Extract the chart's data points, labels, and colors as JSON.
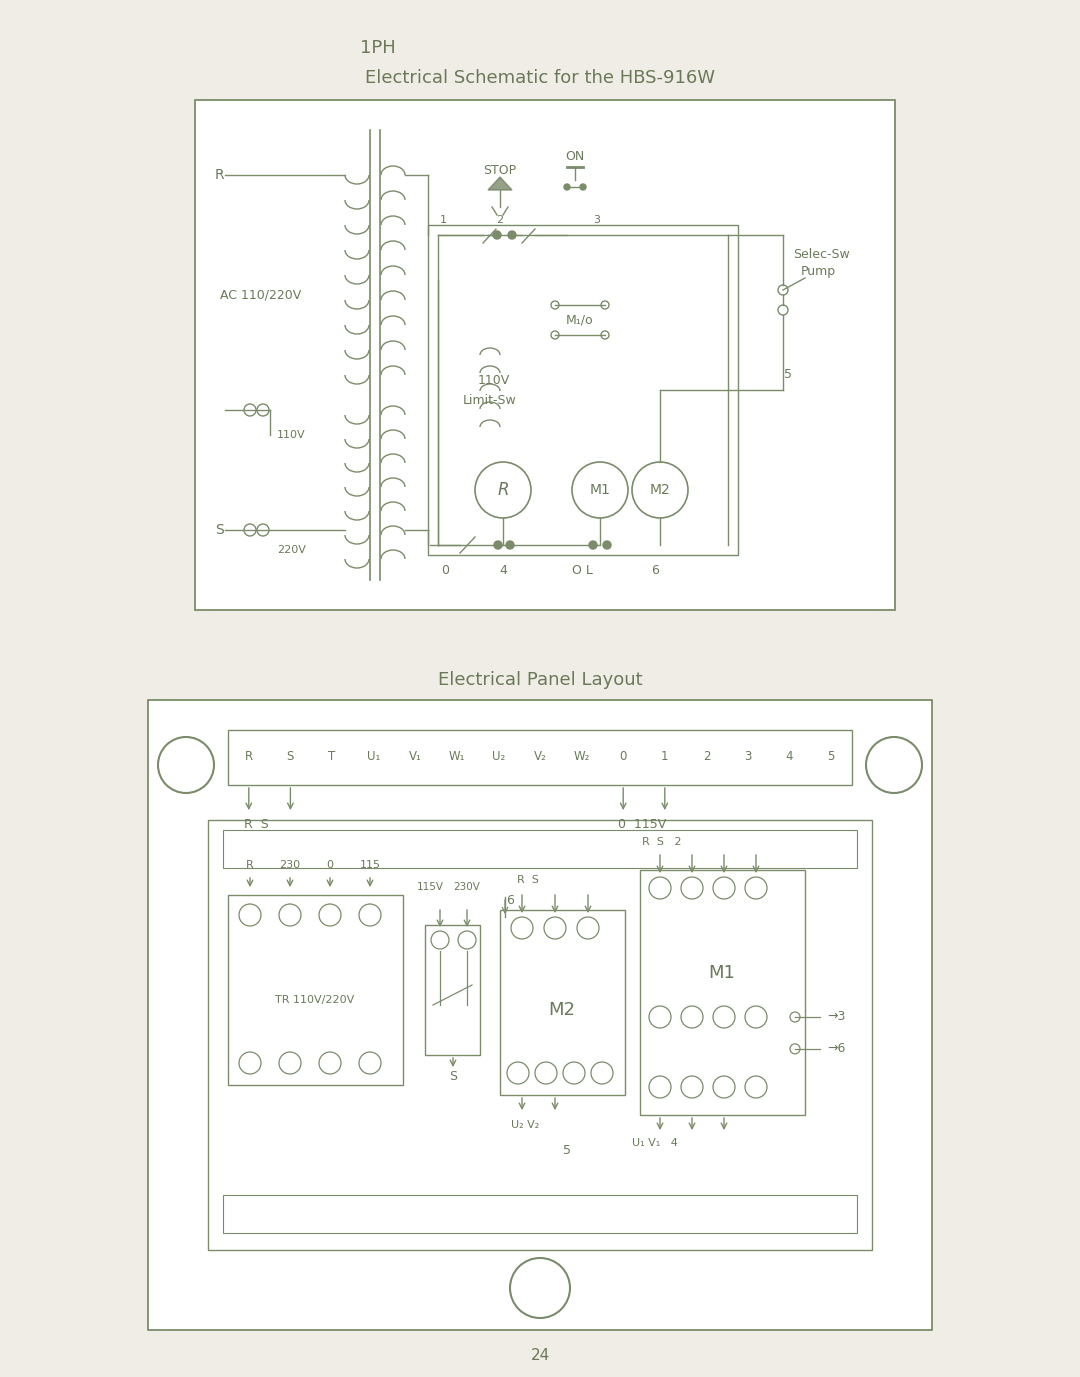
{
  "bg_color": "#f0ede6",
  "line_color": "#7a8c6a",
  "text_color": "#6a7a58",
  "title1": "1PH",
  "title2": "Electrical Schematic for the HBS-916W",
  "title3": "Electrical Panel Layout",
  "page_num": "24"
}
